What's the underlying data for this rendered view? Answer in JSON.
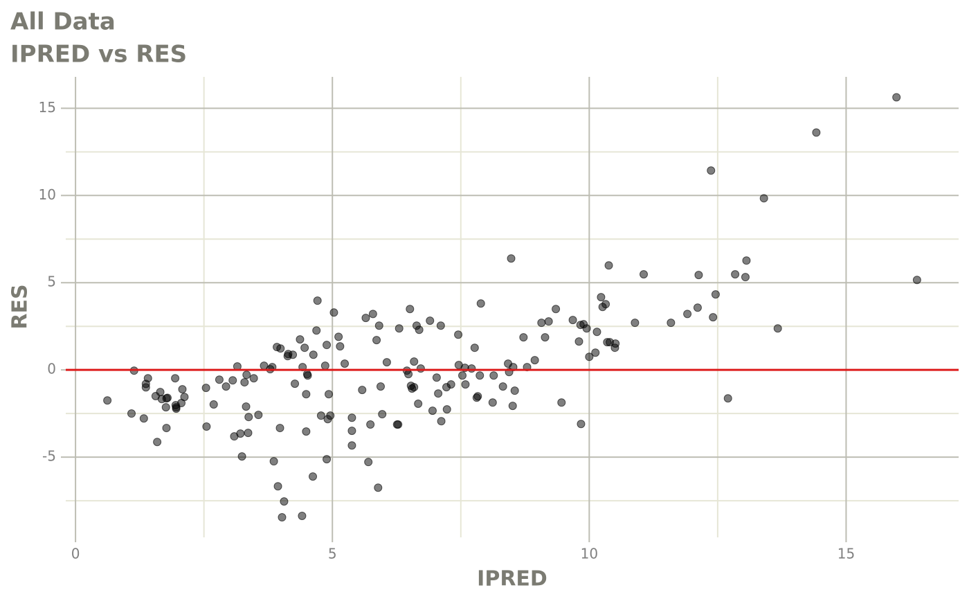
{
  "chart_data": {
    "type": "scatter",
    "title": "All Data",
    "subtitle": "IPRED vs RES",
    "x_label": "IPRED",
    "y_label": "RES",
    "xlim": [
      -0.19,
      17.19
    ],
    "ylim": [
      -9.6,
      16.8
    ],
    "xticks": [
      0,
      5,
      10,
      15
    ],
    "yticks": [
      -5,
      0,
      5,
      10,
      15
    ],
    "xminor": [
      2.5,
      7.5,
      12.5
    ],
    "yminor": [
      -7.5,
      -2.5,
      2.5,
      7.5,
      12.5
    ],
    "grid": true,
    "hline": 0,
    "hline_color": "#dd1c1c",
    "series": [
      {
        "color": "#000000",
        "x": [
          0.62,
          1.09,
          1.14,
          1.33,
          1.37,
          1.37,
          1.41,
          1.56,
          1.59,
          1.65,
          1.68,
          1.76,
          1.77,
          1.77,
          1.79,
          1.94,
          1.95,
          1.96,
          1.96,
          2.06,
          2.08,
          2.12,
          2.54,
          2.55,
          2.69,
          2.8,
          2.93,
          3.06,
          3.09,
          3.15,
          3.21,
          3.24,
          3.29,
          3.32,
          3.33,
          3.37,
          3.36,
          3.47,
          3.56,
          3.67,
          3.79,
          3.83,
          3.86,
          3.92,
          3.94,
          3.98,
          3.99,
          4.02,
          4.06,
          4.13,
          4.14,
          4.23,
          4.27,
          4.37,
          4.41,
          4.42,
          4.46,
          4.49,
          4.49,
          4.51,
          4.52,
          4.62,
          4.63,
          4.69,
          4.71,
          4.78,
          4.86,
          4.89,
          4.89,
          4.91,
          4.93,
          4.96,
          5.03,
          5.12,
          5.15,
          5.24,
          5.38,
          5.38,
          5.38,
          5.58,
          5.65,
          5.7,
          5.74,
          5.79,
          5.86,
          5.89,
          5.91,
          5.94,
          5.97,
          6.06,
          6.26,
          6.28,
          6.3,
          6.45,
          6.48,
          6.51,
          6.53,
          6.55,
          6.59,
          6.59,
          6.64,
          6.67,
          6.69,
          6.72,
          6.9,
          6.95,
          7.03,
          7.06,
          7.11,
          7.12,
          7.22,
          7.23,
          7.31,
          7.45,
          7.46,
          7.53,
          7.58,
          7.59,
          7.71,
          7.77,
          7.81,
          7.83,
          7.87,
          7.89,
          8.12,
          8.14,
          8.32,
          8.42,
          8.44,
          8.48,
          8.51,
          8.52,
          8.55,
          8.72,
          8.79,
          8.94,
          9.07,
          9.14,
          9.21,
          9.35,
          9.46,
          9.68,
          9.8,
          9.83,
          9.84,
          9.89,
          9.95,
          10.0,
          10.12,
          10.15,
          10.23,
          10.26,
          10.32,
          10.35,
          10.38,
          10.4,
          10.5,
          10.51,
          10.89,
          11.06,
          11.59,
          11.91,
          12.11,
          12.13,
          12.37,
          12.41,
          12.46,
          12.7,
          12.84,
          13.04,
          13.06,
          13.4,
          13.67,
          14.42,
          15.98,
          16.38
        ],
        "values": [
          -1.75,
          -2.5,
          -0.04,
          -2.78,
          -1.0,
          -0.8,
          -0.48,
          -1.5,
          -4.13,
          -1.27,
          -1.67,
          -2.14,
          -3.33,
          -1.63,
          -1.6,
          -0.48,
          -2.02,
          -2.22,
          -2.14,
          -1.9,
          -1.11,
          -1.55,
          -1.03,
          -3.25,
          -1.98,
          -0.56,
          -0.95,
          -0.6,
          -3.81,
          0.2,
          -3.65,
          -4.96,
          -0.71,
          -2.1,
          -0.28,
          -2.7,
          -3.61,
          -0.48,
          -2.58,
          0.24,
          0.04,
          0.16,
          -5.24,
          1.31,
          -6.67,
          -3.33,
          1.23,
          -8.45,
          -7.54,
          0.79,
          0.91,
          0.87,
          -0.79,
          1.75,
          -8.37,
          0.16,
          1.27,
          -1.39,
          -3.53,
          -0.24,
          -0.32,
          -6.11,
          0.87,
          2.26,
          3.97,
          -2.62,
          0.24,
          1.43,
          -5.12,
          -2.82,
          -1.39,
          -2.62,
          3.29,
          1.9,
          1.35,
          0.36,
          -2.74,
          -3.49,
          -4.33,
          -1.15,
          2.98,
          -5.28,
          -3.13,
          3.21,
          1.71,
          -6.75,
          2.54,
          -0.95,
          -2.54,
          0.44,
          -3.13,
          -3.13,
          2.38,
          -0.04,
          -0.24,
          3.49,
          -0.91,
          -1.07,
          -0.99,
          0.48,
          2.54,
          -1.94,
          2.3,
          0.08,
          2.82,
          -2.34,
          -0.44,
          -1.35,
          2.54,
          -2.94,
          -0.99,
          -2.26,
          -0.83,
          2.02,
          0.28,
          -0.32,
          0.12,
          -0.83,
          0.08,
          1.27,
          -1.59,
          -1.51,
          -0.32,
          3.81,
          -1.87,
          -0.32,
          -0.95,
          0.36,
          -0.12,
          6.39,
          -2.06,
          0.16,
          -1.19,
          1.87,
          0.16,
          0.56,
          2.7,
          1.87,
          2.78,
          3.49,
          -1.87,
          2.86,
          1.63,
          2.58,
          -3.1,
          2.62,
          2.38,
          0.75,
          0.99,
          2.18,
          4.17,
          3.61,
          3.77,
          1.59,
          5.99,
          1.59,
          1.27,
          1.51,
          2.7,
          5.48,
          2.7,
          3.21,
          3.57,
          5.44,
          11.43,
          3.02,
          4.33,
          -1.63,
          5.48,
          5.32,
          6.27,
          9.84,
          2.38,
          13.61,
          15.63,
          5.16
        ]
      }
    ]
  }
}
